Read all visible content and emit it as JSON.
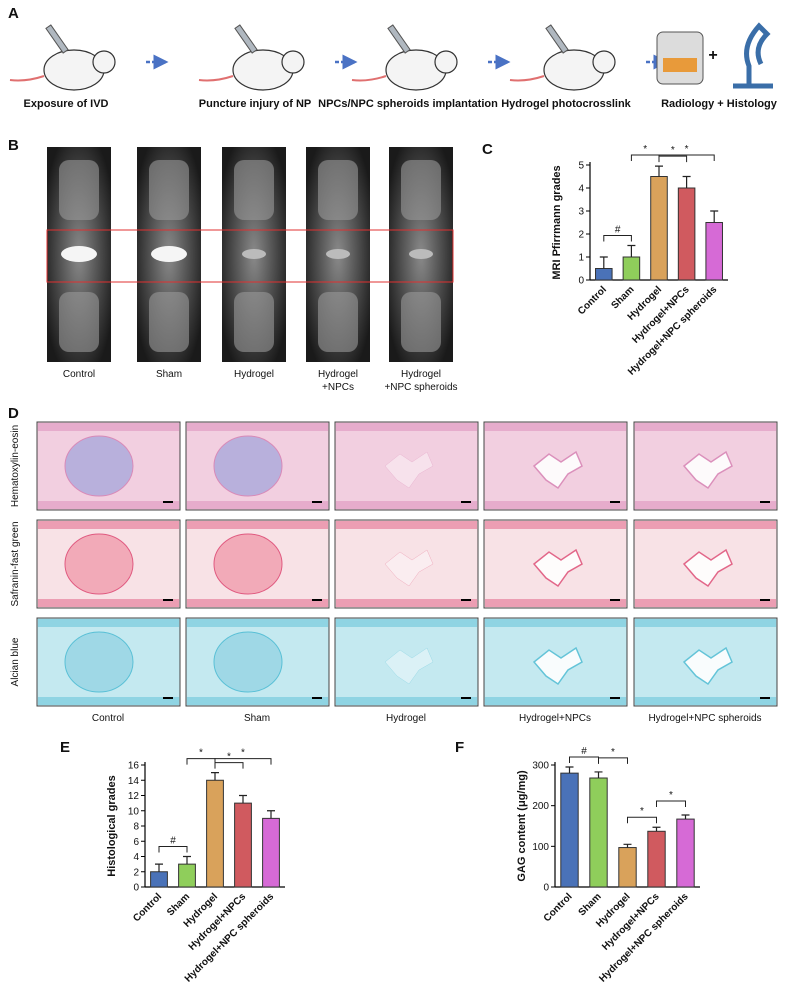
{
  "panels": {
    "A": {
      "label": "A",
      "steps": [
        "Exposure of IVD",
        "Puncture injury of NP",
        "NPCs/NPC spheroids implantation",
        "Hydrogel photocrosslink",
        "Radiology + Histology"
      ]
    },
    "B": {
      "label": "B",
      "captions": [
        "Control",
        "Sham",
        "Hydrogel",
        "Hydrogel\n+NPCs",
        "Hydrogel\n+NPC spheroids"
      ]
    },
    "D": {
      "label": "D",
      "rows": [
        "Hematoxylin-eosin",
        "Safranin-fast green",
        "Alcian blue"
      ],
      "columns": [
        "Control",
        "Sham",
        "Hydrogel",
        "Hydrogel+NPCs",
        "Hydrogel+NPC spheroids"
      ]
    }
  },
  "chart_data": [
    {
      "type": "bar",
      "label": "C",
      "ylabel": "MRI Pfirrmann grades",
      "categories": [
        "Control",
        "Sham",
        "Hydrogel",
        "Hydrogel+NPCs",
        "Hydrogel+NPC spheroids"
      ],
      "values": [
        0.5,
        1,
        4.5,
        4,
        2.5
      ],
      "errors": [
        0.5,
        0.5,
        0.45,
        0.5,
        0.5
      ],
      "colors": [
        "#4a72b8",
        "#8fce5b",
        "#d9a25b",
        "#d05a5f",
        "#d66ad6"
      ],
      "ylim": [
        0,
        5
      ],
      "yticks": [
        0,
        1,
        2,
        3,
        4,
        5
      ],
      "comparisons": [
        {
          "pair": [
            0,
            1
          ],
          "label": "#"
        },
        {
          "pair": [
            1,
            2
          ],
          "label": "*"
        },
        {
          "pair": [
            2,
            3
          ],
          "label": "*"
        },
        {
          "pair": [
            2,
            4
          ],
          "label": "*"
        }
      ]
    },
    {
      "type": "bar",
      "label": "E",
      "ylabel": "Histological grades",
      "categories": [
        "Control",
        "Sham",
        "Hydrogel",
        "Hydrogel+NPCs",
        "Hydrogel+NPC spheroids"
      ],
      "values": [
        2,
        3,
        14,
        11,
        9
      ],
      "errors": [
        1,
        1,
        1,
        1,
        1
      ],
      "colors": [
        "#4a72b8",
        "#8fce5b",
        "#d9a25b",
        "#d05a5f",
        "#d66ad6"
      ],
      "ylim": [
        0,
        16
      ],
      "yticks": [
        0,
        2,
        4,
        6,
        8,
        10,
        12,
        14,
        16
      ],
      "comparisons": [
        {
          "pair": [
            0,
            1
          ],
          "label": "#"
        },
        {
          "pair": [
            1,
            2
          ],
          "label": "*"
        },
        {
          "pair": [
            2,
            3
          ],
          "label": "*"
        },
        {
          "pair": [
            2,
            4
          ],
          "label": "*"
        }
      ]
    },
    {
      "type": "bar",
      "label": "F",
      "ylabel": "GAG content (μg/mg)",
      "categories": [
        "Control",
        "Sham",
        "Hydrogel",
        "Hydrogel+NPCs",
        "Hydrogel+NPC spheroids"
      ],
      "values": [
        280,
        268,
        97,
        137,
        167
      ],
      "errors": [
        15,
        15,
        8,
        10,
        10
      ],
      "colors": [
        "#4a72b8",
        "#8fce5b",
        "#d9a25b",
        "#d05a5f",
        "#d66ad6"
      ],
      "ylim": [
        0,
        300
      ],
      "yticks": [
        0,
        100,
        200,
        300
      ],
      "comparisons": [
        {
          "pair": [
            0,
            1
          ],
          "label": "#"
        },
        {
          "pair": [
            1,
            2
          ],
          "label": "*"
        },
        {
          "pair": [
            2,
            3
          ],
          "label": "*"
        },
        {
          "pair": [
            3,
            4
          ],
          "label": "*"
        }
      ]
    }
  ]
}
